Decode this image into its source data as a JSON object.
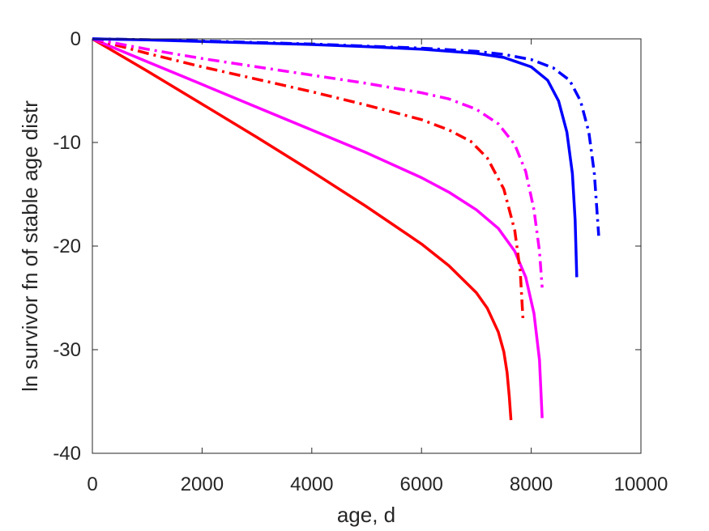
{
  "chart_data": {
    "type": "line",
    "xlabel": "age, d",
    "ylabel": "ln survivor fn of stable age distr",
    "xlim": [
      0,
      10000
    ],
    "ylim": [
      -40,
      0
    ],
    "xticks": [
      0,
      2000,
      4000,
      6000,
      8000,
      10000
    ],
    "yticks": [
      -40,
      -30,
      -20,
      -10,
      0
    ],
    "xtick_labels": [
      "0",
      "2000",
      "4000",
      "6000",
      "8000",
      "10000"
    ],
    "ytick_labels": [
      "-40",
      "-30",
      "-20",
      "-10",
      "0"
    ],
    "grid": false,
    "series": [
      {
        "color": "#ff0000",
        "style": "solid",
        "x": [
          0,
          1000,
          2000,
          3000,
          4000,
          5000,
          6000,
          6500,
          7000,
          7200,
          7400,
          7500,
          7560,
          7600,
          7630
        ],
        "y": [
          0,
          -3.1,
          -6.3,
          -9.5,
          -12.8,
          -16.2,
          -19.8,
          -21.9,
          -24.5,
          -26.0,
          -28.3,
          -30.2,
          -32.2,
          -34.5,
          -36.8
        ]
      },
      {
        "color": "#ff00ff",
        "style": "solid",
        "x": [
          0,
          1000,
          2000,
          3000,
          4000,
          5000,
          6000,
          6500,
          7000,
          7400,
          7700,
          7900,
          8050,
          8150,
          8200
        ],
        "y": [
          0,
          -2.2,
          -4.4,
          -6.6,
          -8.8,
          -11.0,
          -13.4,
          -14.8,
          -16.5,
          -18.3,
          -20.5,
          -23.0,
          -26.5,
          -31.0,
          -36.6
        ]
      },
      {
        "color": "#ff0000",
        "style": "dashdot",
        "x": [
          0,
          1000,
          2000,
          3000,
          4000,
          5000,
          6000,
          6500,
          6900,
          7200,
          7500,
          7700,
          7800,
          7850
        ],
        "y": [
          0,
          -1.4,
          -2.7,
          -3.9,
          -5.1,
          -6.4,
          -7.8,
          -8.8,
          -9.9,
          -11.5,
          -14.5,
          -18.5,
          -22.5,
          -27.0
        ]
      },
      {
        "color": "#ff00ff",
        "style": "dashdot",
        "x": [
          0,
          1000,
          2000,
          3000,
          4000,
          5000,
          6000,
          6500,
          7000,
          7400,
          7700,
          7900,
          8050,
          8150,
          8200
        ],
        "y": [
          0,
          -1.0,
          -1.9,
          -2.7,
          -3.5,
          -4.3,
          -5.2,
          -5.8,
          -6.8,
          -8.2,
          -10.2,
          -12.8,
          -16.5,
          -20.5,
          -24.0
        ]
      },
      {
        "color": "#0000ff",
        "style": "solid",
        "x": [
          0,
          1000,
          2000,
          3000,
          4000,
          5000,
          6000,
          7000,
          7500,
          8000,
          8300,
          8500,
          8650,
          8750,
          8800,
          8830
        ],
        "y": [
          0,
          -0.1,
          -0.25,
          -0.4,
          -0.55,
          -0.75,
          -1.0,
          -1.4,
          -1.8,
          -2.7,
          -4.0,
          -6.0,
          -9.0,
          -13.0,
          -17.5,
          -23.0
        ]
      },
      {
        "color": "#0000ff",
        "style": "dashdot",
        "x": [
          0,
          1000,
          2000,
          3000,
          4000,
          5000,
          6000,
          7000,
          7500,
          8000,
          8400,
          8700,
          8900,
          9050,
          9150,
          9230
        ],
        "y": [
          0,
          -0.08,
          -0.2,
          -0.35,
          -0.5,
          -0.7,
          -0.9,
          -1.2,
          -1.5,
          -2.0,
          -2.8,
          -4.0,
          -6.0,
          -9.0,
          -13.0,
          -19.0
        ]
      }
    ]
  }
}
